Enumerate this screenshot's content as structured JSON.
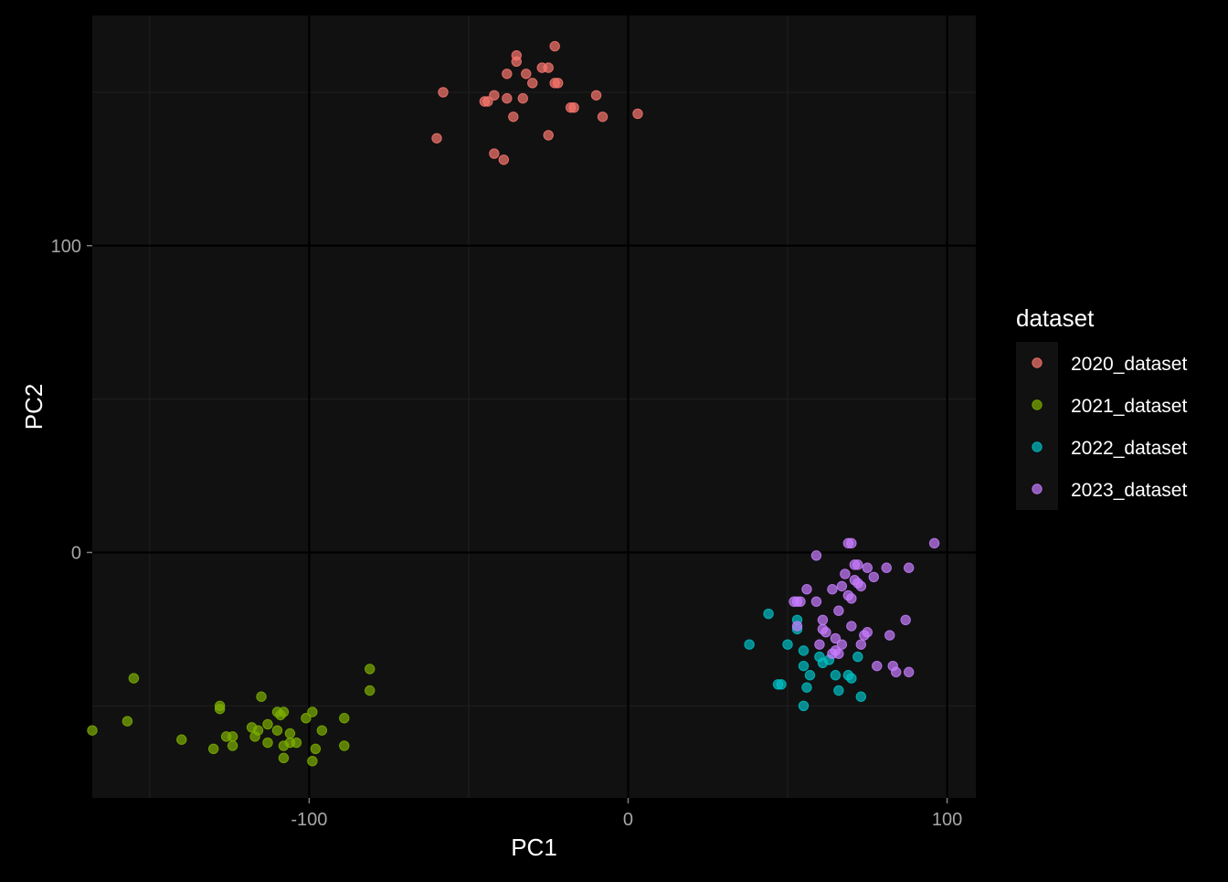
{
  "chart_data": {
    "type": "scatter",
    "title": "",
    "xlabel": "PC1",
    "ylabel": "PC2",
    "xlim": [
      -168,
      109
    ],
    "ylim": [
      -80,
      175
    ],
    "x_ticks": [
      -100,
      0,
      100
    ],
    "x_tick_labels": [
      "-100",
      "0",
      "100"
    ],
    "y_ticks": [
      0,
      100
    ],
    "y_tick_labels": [
      "0",
      "100"
    ],
    "grid": true,
    "legend": {
      "title": "dataset",
      "placement": "right"
    },
    "colors": {
      "background": "#000000",
      "panel": "#111111",
      "grid_major": "#000000",
      "grid_minor": "#1e1e1e"
    },
    "series": [
      {
        "name": "2020_dataset",
        "color": "#F8766D",
        "points": [
          [
            -23,
            165
          ],
          [
            -35,
            162
          ],
          [
            -25,
            158
          ],
          [
            -27,
            158
          ],
          [
            -35,
            160
          ],
          [
            -38,
            156
          ],
          [
            -32,
            156
          ],
          [
            -30,
            153
          ],
          [
            -23,
            153
          ],
          [
            -22,
            153
          ],
          [
            -58,
            150
          ],
          [
            -42,
            149
          ],
          [
            -10,
            149
          ],
          [
            -38,
            148
          ],
          [
            -33,
            148
          ],
          [
            -44,
            147
          ],
          [
            -45,
            147
          ],
          [
            -17,
            145
          ],
          [
            -18,
            145
          ],
          [
            -36,
            142
          ],
          [
            -8,
            142
          ],
          [
            3,
            143
          ],
          [
            -25,
            136
          ],
          [
            -60,
            135
          ],
          [
            -42,
            130
          ],
          [
            -39,
            128
          ]
        ]
      },
      {
        "name": "2021_dataset",
        "color": "#7CAE00",
        "points": [
          [
            -81,
            -38
          ],
          [
            -155,
            -41
          ],
          [
            -81,
            -45
          ],
          [
            -115,
            -47
          ],
          [
            -128,
            -50
          ],
          [
            -128,
            -51
          ],
          [
            -110,
            -52
          ],
          [
            -108,
            -52
          ],
          [
            -109,
            -53
          ],
          [
            -99,
            -52
          ],
          [
            -101,
            -54
          ],
          [
            -89,
            -54
          ],
          [
            -157,
            -55
          ],
          [
            -113,
            -56
          ],
          [
            -118,
            -57
          ],
          [
            -116,
            -58
          ],
          [
            -96,
            -58
          ],
          [
            -110,
            -58
          ],
          [
            -168,
            -58
          ],
          [
            -106,
            -59
          ],
          [
            -117,
            -60
          ],
          [
            -124,
            -60
          ],
          [
            -126,
            -60
          ],
          [
            -140,
            -61
          ],
          [
            -113,
            -62
          ],
          [
            -106,
            -62
          ],
          [
            -108,
            -63
          ],
          [
            -104,
            -62
          ],
          [
            -89,
            -63
          ],
          [
            -98,
            -64
          ],
          [
            -124,
            -63
          ],
          [
            -130,
            -64
          ],
          [
            -108,
            -67
          ],
          [
            -99,
            -68
          ]
        ]
      },
      {
        "name": "2022_dataset",
        "color": "#00BFC4",
        "points": [
          [
            44,
            -20
          ],
          [
            53,
            -22
          ],
          [
            53,
            -25
          ],
          [
            38,
            -30
          ],
          [
            50,
            -30
          ],
          [
            55,
            -32
          ],
          [
            60,
            -34
          ],
          [
            63,
            -35
          ],
          [
            72,
            -34
          ],
          [
            61,
            -36
          ],
          [
            55,
            -37
          ],
          [
            57,
            -40
          ],
          [
            65,
            -40
          ],
          [
            69,
            -40
          ],
          [
            70,
            -41
          ],
          [
            48,
            -43
          ],
          [
            47,
            -43
          ],
          [
            56,
            -44
          ],
          [
            66,
            -45
          ],
          [
            73,
            -47
          ],
          [
            55,
            -50
          ]
        ]
      },
      {
        "name": "2023_dataset",
        "color": "#C77CFF",
        "points": [
          [
            96,
            3
          ],
          [
            69,
            3
          ],
          [
            70,
            3
          ],
          [
            59,
            -1
          ],
          [
            71,
            -4
          ],
          [
            72,
            -4
          ],
          [
            88,
            -5
          ],
          [
            81,
            -5
          ],
          [
            75,
            -5
          ],
          [
            68,
            -7
          ],
          [
            77,
            -8
          ],
          [
            71,
            -9
          ],
          [
            72,
            -10
          ],
          [
            73,
            -11
          ],
          [
            67,
            -11
          ],
          [
            56,
            -12
          ],
          [
            64,
            -12
          ],
          [
            69,
            -14
          ],
          [
            70,
            -15
          ],
          [
            52,
            -16
          ],
          [
            53,
            -16
          ],
          [
            54,
            -16
          ],
          [
            59,
            -16
          ],
          [
            66,
            -19
          ],
          [
            61,
            -22
          ],
          [
            87,
            -22
          ],
          [
            70,
            -24
          ],
          [
            53,
            -24
          ],
          [
            61,
            -25
          ],
          [
            62,
            -26
          ],
          [
            75,
            -26
          ],
          [
            82,
            -27
          ],
          [
            74,
            -27
          ],
          [
            65,
            -28
          ],
          [
            60,
            -30
          ],
          [
            67,
            -30
          ],
          [
            73,
            -30
          ],
          [
            65,
            -32
          ],
          [
            66,
            -33
          ],
          [
            64,
            -33
          ],
          [
            78,
            -37
          ],
          [
            83,
            -37
          ],
          [
            84,
            -39
          ],
          [
            88,
            -39
          ]
        ]
      }
    ]
  }
}
